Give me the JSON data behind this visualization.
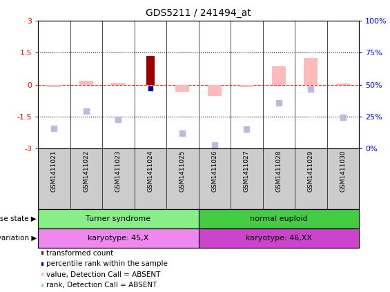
{
  "title": "GDS5211 / 241494_at",
  "samples": [
    "GSM1411021",
    "GSM1411022",
    "GSM1411023",
    "GSM1411024",
    "GSM1411025",
    "GSM1411026",
    "GSM1411027",
    "GSM1411028",
    "GSM1411029",
    "GSM1411030"
  ],
  "transformed_count": [
    null,
    null,
    null,
    1.35,
    null,
    null,
    null,
    null,
    null,
    null
  ],
  "percentile_rank": [
    null,
    null,
    null,
    -0.18,
    null,
    null,
    null,
    null,
    null,
    null
  ],
  "value_absent": [
    -0.12,
    0.18,
    0.07,
    null,
    -0.35,
    -0.55,
    -0.1,
    0.85,
    1.25,
    0.05
  ],
  "rank_absent": [
    -2.05,
    -1.25,
    -1.65,
    null,
    -2.3,
    -2.85,
    -2.1,
    -0.85,
    -0.2,
    -1.55
  ],
  "ylim": [
    -3,
    3
  ],
  "y2lim": [
    0,
    100
  ],
  "yticks": [
    -3,
    -1.5,
    0,
    1.5,
    3
  ],
  "y2ticks": [
    0,
    25,
    50,
    75,
    100
  ],
  "ytick_labels": [
    "-3",
    "-1.5",
    "0",
    "1.5",
    "3"
  ],
  "y2tick_labels": [
    "0%",
    "25%",
    "50%",
    "75%",
    "100%"
  ],
  "disease_state_groups": [
    {
      "label": "Turner syndrome",
      "start": 0,
      "end": 5,
      "color": "#88ee88"
    },
    {
      "label": "normal euploid",
      "start": 5,
      "end": 10,
      "color": "#44cc44"
    }
  ],
  "genotype_groups": [
    {
      "label": "karyotype: 45,X",
      "start": 0,
      "end": 5,
      "color": "#ee88ee"
    },
    {
      "label": "karyotype: 46,XX",
      "start": 5,
      "end": 10,
      "color": "#cc44cc"
    }
  ],
  "bar_color_dark_red": "#990000",
  "bar_color_blue": "#000099",
  "bar_color_pink": "#ffbbbb",
  "bar_color_lavender": "#bbbbdd",
  "bg_gray": "#cccccc",
  "legend_items": [
    {
      "color": "#990000",
      "label": "transformed count"
    },
    {
      "color": "#000099",
      "label": "percentile rank within the sample"
    },
    {
      "color": "#ffbbbb",
      "label": "value, Detection Call = ABSENT"
    },
    {
      "color": "#bbbbdd",
      "label": "rank, Detection Call = ABSENT"
    }
  ]
}
